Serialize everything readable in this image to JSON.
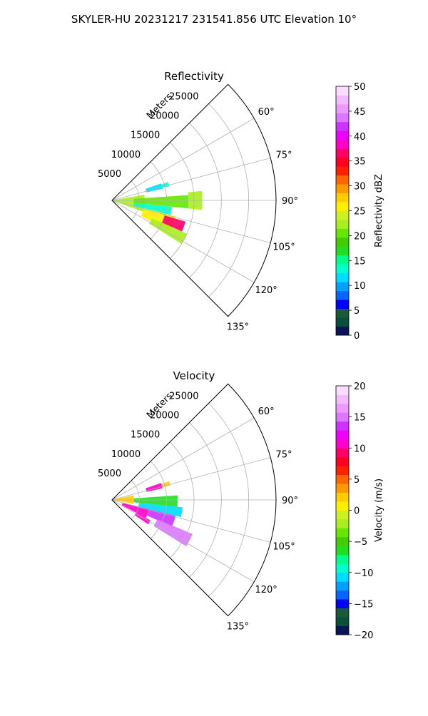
{
  "figure": {
    "title": "SKYLER-HU  20231217  231541.856 UTC Elevation 10°"
  },
  "chart_data": [
    {
      "type": "heatmap",
      "title": "Reflectivity",
      "projection": "polar-sector",
      "r_label": "Meters",
      "r_ticks": [
        "5000",
        "10000",
        "15000",
        "20000",
        "25000"
      ],
      "r_tick_values": [
        5000,
        10000,
        15000,
        20000,
        25000
      ],
      "r_max": 30000,
      "theta_range_deg": [
        45,
        135
      ],
      "theta_ticks": [
        "60°",
        "75°",
        "90°",
        "105°",
        "120°",
        "135°"
      ],
      "theta_tick_values": [
        60,
        75,
        90,
        105,
        120,
        135
      ],
      "grid": true,
      "colorbar": {
        "label": "Reflectivity dBZ",
        "range": [
          0,
          50
        ],
        "ticks": [
          "0",
          "5",
          "10",
          "15",
          "20",
          "25",
          "30",
          "35",
          "40",
          "45",
          "50"
        ],
        "tick_values": [
          0,
          5,
          10,
          15,
          20,
          25,
          30,
          35,
          40,
          45,
          50
        ],
        "colors": [
          "#0a1456",
          "#0a4f3a",
          "#1a5a3a",
          "#0000ff",
          "#0a64ff",
          "#00a0ff",
          "#00dcff",
          "#00ffcc",
          "#00ff88",
          "#22dd22",
          "#44cc00",
          "#66e600",
          "#aaee22",
          "#ccf022",
          "#ffee00",
          "#ffcc00",
          "#ff9900",
          "#ff6600",
          "#ff2200",
          "#ff0022",
          "#ff0066",
          "#ff00cc",
          "#ee00ff",
          "#cc33ff",
          "#dd77ff",
          "#ee99ff",
          "#f4bbff",
          "#fbdcff"
        ]
      },
      "echoes": [
        {
          "r": [
            0,
            6000
          ],
          "theta": [
            80,
            110
          ],
          "value": 22
        },
        {
          "r": [
            4000,
            14000
          ],
          "theta": [
            86,
            96
          ],
          "value": 20
        },
        {
          "r": [
            14000,
            16500
          ],
          "theta": [
            84,
            96
          ],
          "value": 22
        },
        {
          "r": [
            4000,
            11000
          ],
          "theta": [
            96,
            104
          ],
          "value": 14
        },
        {
          "r": [
            6000,
            12000
          ],
          "theta": [
            104,
            118
          ],
          "value": 25
        },
        {
          "r": [
            10000,
            14000
          ],
          "theta": [
            106,
            114
          ],
          "value": 37
        },
        {
          "r": [
            8000,
            15000
          ],
          "theta": [
            114,
            122
          ],
          "value": 22
        },
        {
          "r": [
            6500,
            9500
          ],
          "theta": [
            71,
            77
          ],
          "value": 12
        },
        {
          "r": [
            9500,
            10800
          ],
          "theta": [
            72,
            76
          ],
          "value": 14
        }
      ]
    },
    {
      "type": "heatmap",
      "title": "Velocity",
      "projection": "polar-sector",
      "r_label": "Meters",
      "r_ticks": [
        "5000",
        "10000",
        "15000",
        "20000",
        "25000"
      ],
      "r_tick_values": [
        5000,
        10000,
        15000,
        20000,
        25000
      ],
      "r_max": 30000,
      "theta_range_deg": [
        45,
        135
      ],
      "theta_ticks": [
        "60°",
        "75°",
        "90°",
        "105°",
        "120°",
        "135°"
      ],
      "theta_tick_values": [
        60,
        75,
        90,
        105,
        120,
        135
      ],
      "grid": true,
      "colorbar": {
        "label": "Velocity (m/s)",
        "range": [
          -20,
          20
        ],
        "ticks": [
          "−20",
          "−15",
          "−10",
          "−5",
          "0",
          "5",
          "10",
          "15",
          "20"
        ],
        "tick_values": [
          -20,
          -15,
          -10,
          -5,
          0,
          5,
          10,
          15,
          20
        ],
        "colors": [
          "#0a1456",
          "#0a4f3a",
          "#1a5a3a",
          "#0000ff",
          "#0a64ff",
          "#00a0ff",
          "#00dcff",
          "#00ffcc",
          "#00ff88",
          "#22dd22",
          "#44cc00",
          "#66e600",
          "#aaee22",
          "#ccf022",
          "#ffee00",
          "#ffcc00",
          "#ff9900",
          "#ff6600",
          "#ff2200",
          "#ff0022",
          "#ff0066",
          "#ff00cc",
          "#ee00ff",
          "#cc33ff",
          "#dd77ff",
          "#ee99ff",
          "#f4bbff",
          "#fbdcff"
        ]
      },
      "echoes": [
        {
          "r": [
            0,
            4000
          ],
          "theta": [
            78,
            100
          ],
          "value": 2
        },
        {
          "r": [
            4000,
            12000
          ],
          "theta": [
            86,
            96
          ],
          "value": -6
        },
        {
          "r": [
            5000,
            13000
          ],
          "theta": [
            96,
            104
          ],
          "value": -11
        },
        {
          "r": [
            2000,
            7000
          ],
          "theta": [
            104,
            118
          ],
          "value": 10
        },
        {
          "r": [
            7000,
            12000
          ],
          "theta": [
            104,
            114
          ],
          "value": 13
        },
        {
          "r": [
            9000,
            16000
          ],
          "theta": [
            113,
            122
          ],
          "value": 15
        },
        {
          "r": [
            5000,
            8000
          ],
          "theta": [
            118,
            124
          ],
          "value": 10
        },
        {
          "r": [
            6500,
            9500
          ],
          "theta": [
            71,
            77
          ],
          "value": 10
        },
        {
          "r": [
            9500,
            11000
          ],
          "theta": [
            72,
            76
          ],
          "value": 2
        }
      ]
    }
  ]
}
